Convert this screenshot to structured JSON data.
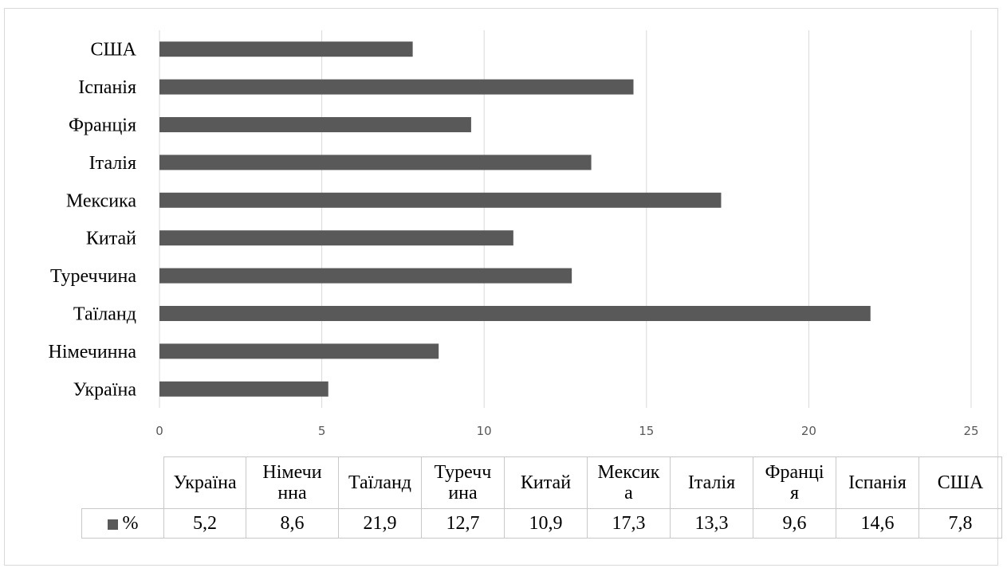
{
  "chart_data": {
    "type": "bar",
    "orientation": "horizontal",
    "categories": [
      "Україна",
      "Німечинна",
      "Таїланд",
      "Туреччина",
      "Китай",
      "Мексика",
      "Італія",
      "Франція",
      "Іспанія",
      "США"
    ],
    "table_headers": [
      "Україна",
      "Німечи\nнна",
      "Таїланд",
      "Туречч\nина",
      "Китай",
      "Мексик\nа",
      "Італія",
      "Франці\nя",
      "Іспанія",
      "США"
    ],
    "series": [
      {
        "name": "%",
        "values": [
          5.2,
          8.6,
          21.9,
          12.7,
          10.9,
          17.3,
          13.3,
          9.6,
          14.6,
          7.8
        ],
        "value_labels": [
          "5,2",
          "8,6",
          "21,9",
          "12,7",
          "10,9",
          "17,3",
          "13,3",
          "9,6",
          "14,6",
          "7,8"
        ]
      }
    ],
    "xlim": [
      0,
      25
    ],
    "x_ticks": [
      0,
      5,
      10,
      15,
      20,
      25
    ],
    "grid": true,
    "legend": "data-table",
    "bar_color": "#595959",
    "grid_color": "#d9d9d9",
    "title": "",
    "xlabel": "",
    "ylabel": ""
  }
}
